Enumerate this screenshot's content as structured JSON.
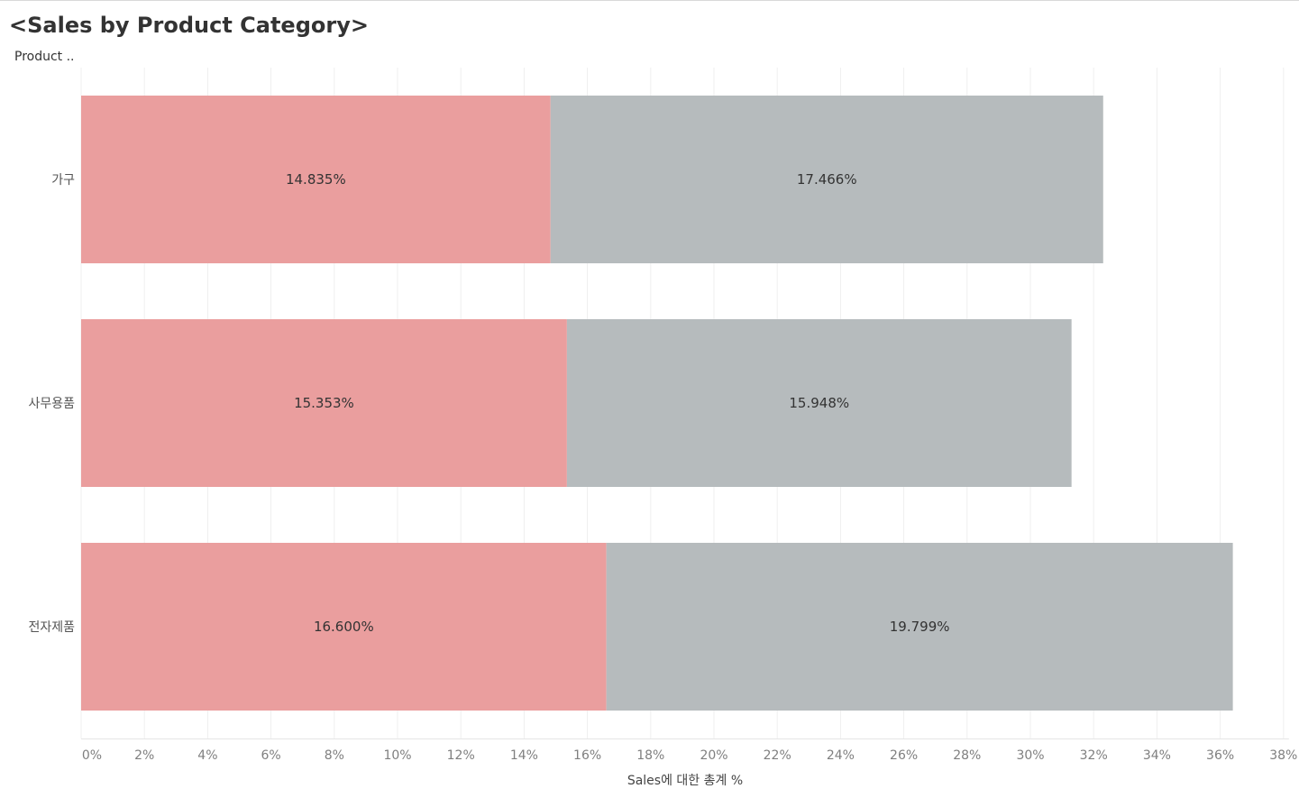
{
  "title": "<Sales by Product Category>",
  "column_header": "Product ..",
  "chart_data": {
    "type": "bar",
    "orientation": "horizontal",
    "stacked": true,
    "categories": [
      "가구",
      "사무용품",
      "전자제품"
    ],
    "series": [
      {
        "values": [
          14.835,
          15.353,
          16.6
        ],
        "labels": [
          "14.835%",
          "15.353%",
          "16.600%"
        ],
        "color": "#ea9e9e"
      },
      {
        "values": [
          17.466,
          15.948,
          19.799
        ],
        "labels": [
          "17.466%",
          "15.948%",
          "19.799%"
        ],
        "color": "#b6bbbd"
      }
    ],
    "xlabel": "Sales에 대한 총계 %",
    "xlim": [
      0,
      38
    ],
    "xticks": [
      0,
      2,
      4,
      6,
      8,
      10,
      12,
      14,
      16,
      18,
      20,
      22,
      24,
      26,
      28,
      30,
      32,
      34,
      36,
      38
    ],
    "xtick_labels": [
      "0%",
      "2%",
      "4%",
      "6%",
      "8%",
      "10%",
      "12%",
      "14%",
      "16%",
      "18%",
      "20%",
      "22%",
      "24%",
      "26%",
      "28%",
      "30%",
      "32%",
      "34%",
      "36%",
      "38%"
    ],
    "grid": true
  }
}
